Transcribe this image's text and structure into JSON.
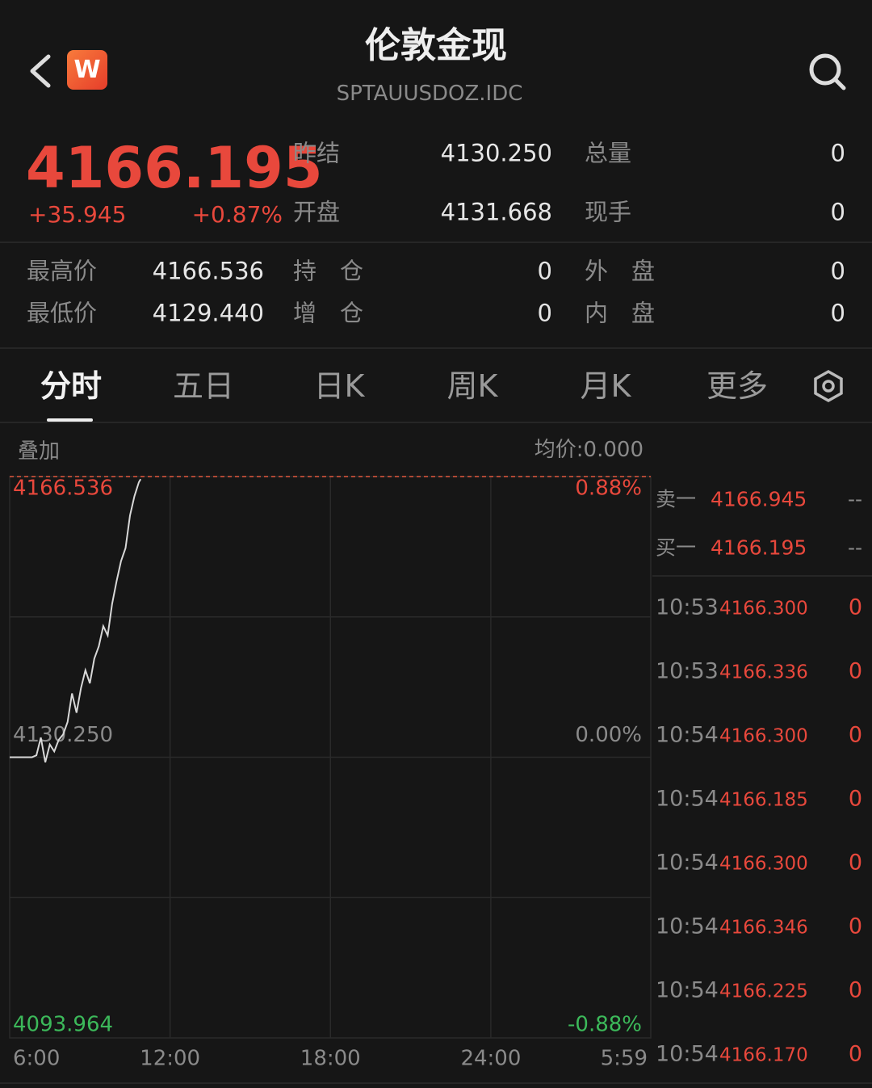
{
  "header": {
    "title": "伦敦金现",
    "subtitle": "SPTAUUSDOZ.IDC",
    "logo": "W"
  },
  "quote": {
    "price": "4166.195",
    "change": "+35.945",
    "change_pct": "+0.87%",
    "stats": [
      {
        "label": "昨结",
        "value": "4130.250"
      },
      {
        "label": "总量",
        "value": "0"
      },
      {
        "label": "开盘",
        "value": "4131.668"
      },
      {
        "label": "现手",
        "value": "0"
      },
      {
        "label": "最高价",
        "value": "4166.536"
      },
      {
        "label": "持　仓",
        "value": "0"
      },
      {
        "label": "外　盘",
        "value": "0"
      },
      {
        "label": "最低价",
        "value": "4129.440"
      },
      {
        "label": "增　仓",
        "value": "0"
      },
      {
        "label": "内　盘",
        "value": "0"
      }
    ]
  },
  "tabs": [
    "分时",
    "五日",
    "日K",
    "周K",
    "月K",
    "更多"
  ],
  "chart": {
    "overlay": "叠加",
    "avg_price": "均价:0.000",
    "ylim": [
      4093.964,
      4166.536
    ],
    "yticks": [
      4166.536,
      {
        "value": 4130.25,
        "label": "4130.250"
      },
      4093.964
    ],
    "y2lim": [
      -0.88,
      0.88
    ],
    "y2ticks": [
      {
        "value": 0.88,
        "label": "0.88%"
      },
      {
        "value": 0,
        "label": "0.00%"
      },
      {
        "value": -0.88,
        "label": "-0.88%"
      }
    ],
    "xlim": [
      "6:00",
      "5:59"
    ],
    "xticks": [
      "6:00",
      "12:00",
      "18:00",
      "24:00",
      "5:59"
    ],
    "x": [
      "6:00",
      "6:10",
      "6:20",
      "6:30",
      "6:40",
      "6:50",
      "7:00",
      "7:10",
      "7:20",
      "7:30",
      "7:40",
      "7:50",
      "8:00",
      "8:10",
      "8:20",
      "8:30",
      "8:40",
      "8:50",
      "9:00",
      "9:10",
      "9:20",
      "9:30",
      "9:40",
      "9:50",
      "10:00",
      "10:10",
      "10:20",
      "10:30",
      "10:40",
      "10:50",
      "10:54"
    ],
    "values": [
      4130.25,
      4130.25,
      4130.25,
      4130.25,
      4130.25,
      4130.25,
      4130.5,
      4132.8,
      4129.6,
      4131.9,
      4131.0,
      4132.5,
      4133.2,
      4134.8,
      4138.5,
      4136.0,
      4139.2,
      4141.5,
      4139.8,
      4143.0,
      4144.6,
      4147.2,
      4146.0,
      4150.1,
      4153.0,
      4155.6,
      4157.3,
      4161.5,
      4164.0,
      4165.8,
      4166.195
    ],
    "color": "#d8d8d8",
    "high_line_color": "#e0553a"
  },
  "order_book": [
    {
      "label": "卖一",
      "price": "4166.945",
      "volume": "--"
    },
    {
      "label": "买一",
      "price": "4166.195",
      "volume": "--"
    }
  ],
  "trades": [
    {
      "time": "10:53",
      "price": "4166.300",
      "volume": "0"
    },
    {
      "time": "10:53",
      "price": "4166.336",
      "volume": "0"
    },
    {
      "time": "10:54",
      "price": "4166.300",
      "volume": "0"
    },
    {
      "time": "10:54",
      "price": "4166.185",
      "volume": "0"
    },
    {
      "time": "10:54",
      "price": "4166.300",
      "volume": "0"
    },
    {
      "time": "10:54",
      "price": "4166.346",
      "volume": "0"
    },
    {
      "time": "10:54",
      "price": "4166.225",
      "volume": "0"
    },
    {
      "time": "10:54",
      "price": "4166.170",
      "volume": "0"
    }
  ]
}
